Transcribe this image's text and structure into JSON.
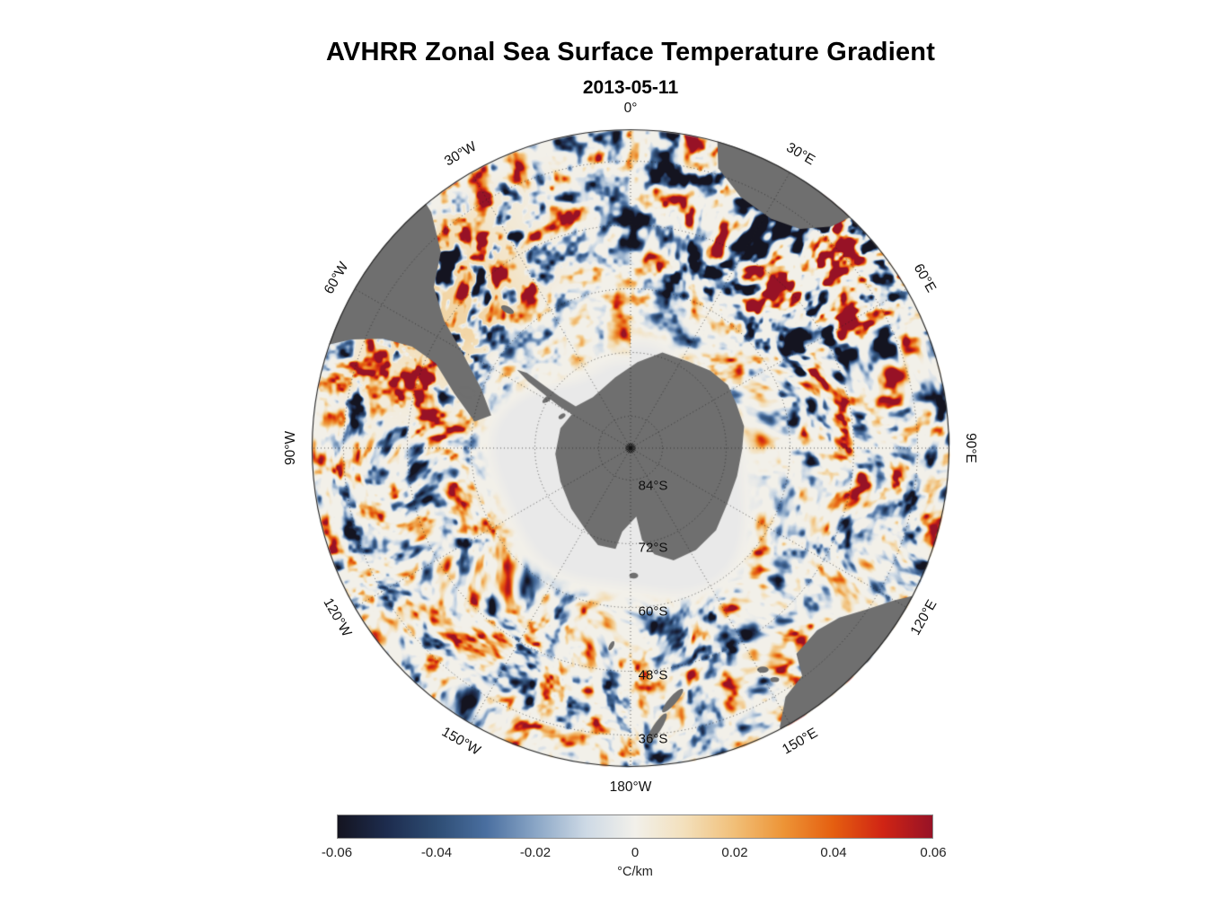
{
  "title": "AVHRR Zonal Sea Surface Temperature Gradient",
  "subtitle": "2013-05-11",
  "chart_data": {
    "type": "heatmap",
    "title": "AVHRR Zonal Sea Surface Temperature Gradient",
    "date": "2013-05-11",
    "units": "°C/km",
    "value_min": -0.06,
    "value_max": 0.06,
    "meridian_labels": [
      {
        "text": "0°"
      },
      {
        "text": "30°E"
      },
      {
        "text": "60°E"
      },
      {
        "text": "90°E"
      },
      {
        "text": "120°E"
      },
      {
        "text": "150°E"
      },
      {
        "text": "180°W"
      },
      {
        "text": "150°W"
      },
      {
        "text": "120°W"
      },
      {
        "text": "90°W"
      },
      {
        "text": "60°W"
      },
      {
        "text": "30°W"
      }
    ],
    "parallel_labels": [
      {
        "text": "84°S"
      },
      {
        "text": "72°S"
      },
      {
        "text": "60°S"
      },
      {
        "text": "48°S"
      },
      {
        "text": "36°S"
      }
    ],
    "colorbar": {
      "label": "°C/km",
      "ticks": [
        "-0.06",
        "-0.04",
        "-0.02",
        "0",
        "0.02",
        "0.04",
        "0.06"
      ],
      "stops": [
        {
          "pos": 0.0,
          "color": "#141420"
        },
        {
          "pos": 0.083,
          "color": "#1d2c4e"
        },
        {
          "pos": 0.167,
          "color": "#2e4d74"
        },
        {
          "pos": 0.25,
          "color": "#4a6fa0"
        },
        {
          "pos": 0.333,
          "color": "#8aa6c6"
        },
        {
          "pos": 0.417,
          "color": "#cdd9e5"
        },
        {
          "pos": 0.5,
          "color": "#f2f0ea"
        },
        {
          "pos": 0.583,
          "color": "#f3e0bc"
        },
        {
          "pos": 0.667,
          "color": "#f1bf78"
        },
        {
          "pos": 0.75,
          "color": "#ed9436"
        },
        {
          "pos": 0.833,
          "color": "#e55f10"
        },
        {
          "pos": 0.917,
          "color": "#d02414"
        },
        {
          "pos": 1.0,
          "color": "#971226"
        }
      ]
    },
    "colors": {
      "land": "#6f6f6f",
      "ice": "#e9e9e9",
      "grid": "#333333",
      "outline": "#222222"
    }
  }
}
